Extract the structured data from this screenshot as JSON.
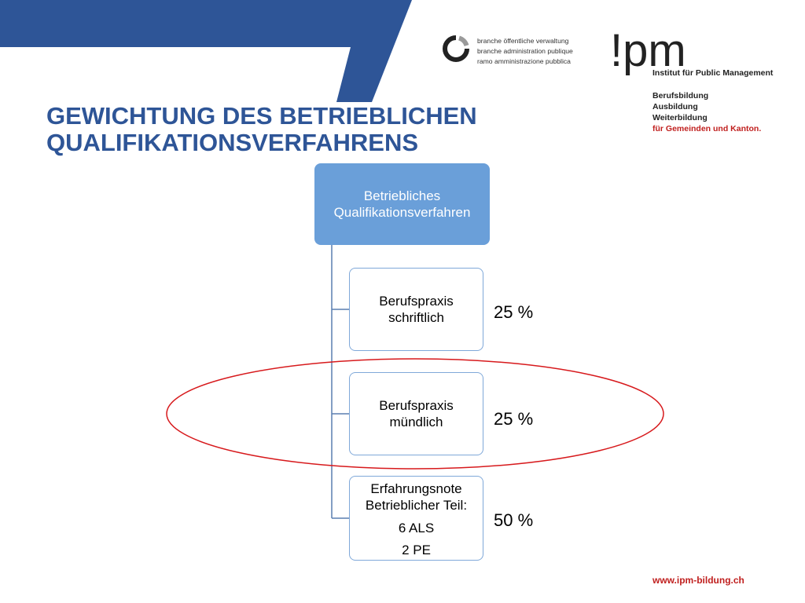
{
  "header": {
    "title_line1": "GEWICHTUNG DES BETRIEBLICHEN",
    "title_line2": "QUALIFIKATIONSVERFAHRENS"
  },
  "branche_logo": {
    "icon": "ring-logo-icon",
    "lines": [
      "branche öffentliche verwaltung",
      "branche administration publique",
      "ramo amministrazione pubblica"
    ]
  },
  "ipm_logo": {
    "wordmark": "!pm",
    "subtitle": "Institut für Public Management",
    "lines": [
      "Berufsbildung",
      "Ausbildung",
      "Weiterbildung"
    ],
    "highlight_line": "für Gemeinden und Kanton."
  },
  "diagram": {
    "root": {
      "line1": "Betriebliches",
      "line2": "Qualifikationsverfahren"
    },
    "children": [
      {
        "line1": "Berufspraxis",
        "line2": "schriftlich",
        "weight": "25 %"
      },
      {
        "line1": "Berufspraxis",
        "line2": "mündlich",
        "weight": "25 %"
      },
      {
        "line1": "Erfahrungsnote",
        "line2": "Betrieblicher Teil:",
        "line3": "6 ALS",
        "line4": "2 PE",
        "weight": "50 %"
      }
    ]
  },
  "footer": {
    "url": "www.ipm-bildung.ch"
  },
  "colors": {
    "banner": "#2e5597",
    "title": "#2e5597",
    "root_fill": "#6a9fd9",
    "child_border": "#7fa8d9",
    "highlight_ellipse": "#d7191c",
    "brand_red": "#c0201f"
  }
}
